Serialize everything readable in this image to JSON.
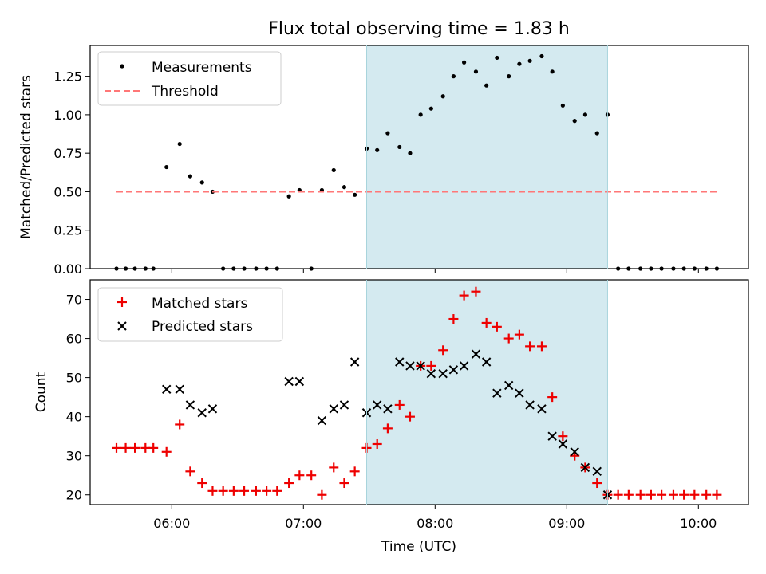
{
  "chart_data": {
    "title": "Flux total observing time = 1.83 h",
    "xlabel": "Time (UTC)",
    "x_ticks": [
      "06:00",
      "07:00",
      "08:00",
      "09:00",
      "10:00"
    ],
    "x_tick_hours": [
      6,
      7,
      8,
      9,
      10
    ],
    "xlim_hours": [
      5.38,
      10.38
    ],
    "highlight_window_hours": [
      7.48,
      9.31
    ],
    "highlight_color": "#d4eaf0",
    "panels": [
      {
        "type": "scatter",
        "ylabel": "Matched/Predicted stars",
        "ylim": [
          0,
          1.45
        ],
        "yticks": [
          0.0,
          0.25,
          0.5,
          0.75,
          1.0,
          1.25
        ],
        "ytick_labels": [
          "0.00",
          "0.25",
          "0.50",
          "0.75",
          "1.00",
          "1.25"
        ],
        "legend_position": "upper-left",
        "series": [
          {
            "name": "Measurements",
            "marker": "dot",
            "color": "#000000",
            "x_hours": [
              5.58,
              5.65,
              5.72,
              5.8,
              5.86,
              5.96,
              6.06,
              6.14,
              6.23,
              6.31,
              6.39,
              6.47,
              6.55,
              6.64,
              6.72,
              6.8,
              6.89,
              6.97,
              7.06,
              7.14,
              7.23,
              7.31,
              7.39,
              7.48,
              7.56,
              7.64,
              7.73,
              7.81,
              7.89,
              7.97,
              8.06,
              8.14,
              8.22,
              8.31,
              8.39,
              8.47,
              8.56,
              8.64,
              8.72,
              8.81,
              8.89,
              8.97,
              9.06,
              9.14,
              9.23,
              9.31,
              9.39,
              9.47,
              9.56,
              9.64,
              9.72,
              9.81,
              9.89,
              9.97,
              10.06,
              10.14
            ],
            "values": [
              0,
              0,
              0,
              0,
              0,
              0.66,
              0.81,
              0.6,
              0.56,
              0.5,
              0,
              0,
              0,
              0,
              0,
              0,
              0.47,
              0.51,
              0,
              0.51,
              0.64,
              0.53,
              0.48,
              0.78,
              0.77,
              0.88,
              0.79,
              0.75,
              1.0,
              1.04,
              1.12,
              1.25,
              1.34,
              1.28,
              1.19,
              1.37,
              1.25,
              1.33,
              1.35,
              1.38,
              1.28,
              1.06,
              0.96,
              1.0,
              0.88,
              1.0,
              0,
              0,
              0,
              0,
              0,
              0,
              0,
              0,
              0,
              0
            ]
          },
          {
            "name": "Threshold",
            "marker": "dashed-line",
            "color": "#ff7777",
            "x_hours": [
              5.58,
              10.14
            ],
            "values": [
              0.5,
              0.5
            ]
          }
        ]
      },
      {
        "type": "scatter",
        "ylabel": "Count",
        "ylim": [
          17.5,
          75
        ],
        "yticks": [
          20,
          30,
          40,
          50,
          60,
          70
        ],
        "ytick_labels": [
          "20",
          "30",
          "40",
          "50",
          "60",
          "70"
        ],
        "legend_position": "upper-left",
        "series": [
          {
            "name": "Matched stars",
            "marker": "plus",
            "color": "#ee0000",
            "x_hours": [
              5.58,
              5.65,
              5.72,
              5.8,
              5.86,
              5.96,
              6.06,
              6.14,
              6.23,
              6.31,
              6.39,
              6.47,
              6.55,
              6.64,
              6.72,
              6.8,
              6.89,
              6.97,
              7.06,
              7.14,
              7.23,
              7.31,
              7.39,
              7.48,
              7.56,
              7.64,
              7.73,
              7.81,
              7.89,
              7.97,
              8.06,
              8.14,
              8.22,
              8.31,
              8.39,
              8.47,
              8.56,
              8.64,
              8.72,
              8.81,
              8.89,
              8.97,
              9.06,
              9.14,
              9.23,
              9.31,
              9.39,
              9.47,
              9.56,
              9.64,
              9.72,
              9.81,
              9.89,
              9.97,
              10.06,
              10.14
            ],
            "values": [
              32,
              32,
              32,
              32,
              32,
              31,
              38,
              26,
              23,
              21,
              21,
              21,
              21,
              21,
              21,
              21,
              23,
              25,
              25,
              20,
              27,
              23,
              26,
              32,
              33,
              37,
              43,
              40,
              53,
              53,
              57,
              65,
              71,
              72,
              64,
              63,
              60,
              61,
              58,
              58,
              45,
              35,
              30,
              27,
              23,
              20,
              20,
              20,
              20,
              20,
              20,
              20,
              20,
              20,
              20,
              20
            ]
          },
          {
            "name": "Predicted stars",
            "marker": "x",
            "color": "#000000",
            "x_hours": [
              5.96,
              6.06,
              6.14,
              6.23,
              6.31,
              6.89,
              6.97,
              7.14,
              7.23,
              7.31,
              7.39,
              7.48,
              7.56,
              7.64,
              7.73,
              7.81,
              7.89,
              7.97,
              8.06,
              8.14,
              8.22,
              8.31,
              8.39,
              8.47,
              8.56,
              8.64,
              8.72,
              8.81,
              8.89,
              8.97,
              9.06,
              9.14,
              9.23,
              9.31
            ],
            "values": [
              47,
              47,
              43,
              41,
              42,
              49,
              49,
              39,
              42,
              43,
              54,
              41,
              43,
              42,
              54,
              53,
              53,
              51,
              51,
              52,
              53,
              56,
              54,
              46,
              48,
              46,
              43,
              42,
              35,
              33,
              31,
              27,
              26,
              20
            ]
          }
        ]
      }
    ]
  }
}
